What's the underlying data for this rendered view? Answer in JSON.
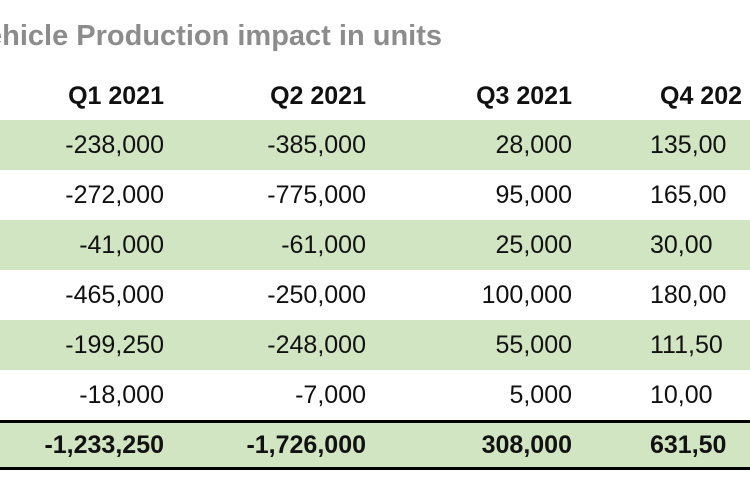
{
  "chart_data": {
    "type": "table",
    "title": "ehicle Production impact in units",
    "columns": [
      "Q1 2021",
      "Q2 2021",
      "Q3 2021",
      "Q4 202"
    ],
    "rows": [
      [
        "-238,000",
        "-385,000",
        "28,000",
        "135,00"
      ],
      [
        "-272,000",
        "-775,000",
        "95,000",
        "165,00"
      ],
      [
        "-41,000",
        "-61,000",
        "25,000",
        "30,00"
      ],
      [
        "-465,000",
        "-250,000",
        "100,000",
        "180,00"
      ],
      [
        "-199,250",
        "-248,000",
        "55,000",
        "111,50"
      ],
      [
        "-18,000",
        "-7,000",
        "5,000",
        "10,00"
      ]
    ],
    "total": [
      "-1,233,250",
      "-1,726,000",
      "308,000",
      "631,50"
    ],
    "colors": {
      "shaded_row": "#d2e5c2",
      "title": "#8c8c8c"
    }
  }
}
